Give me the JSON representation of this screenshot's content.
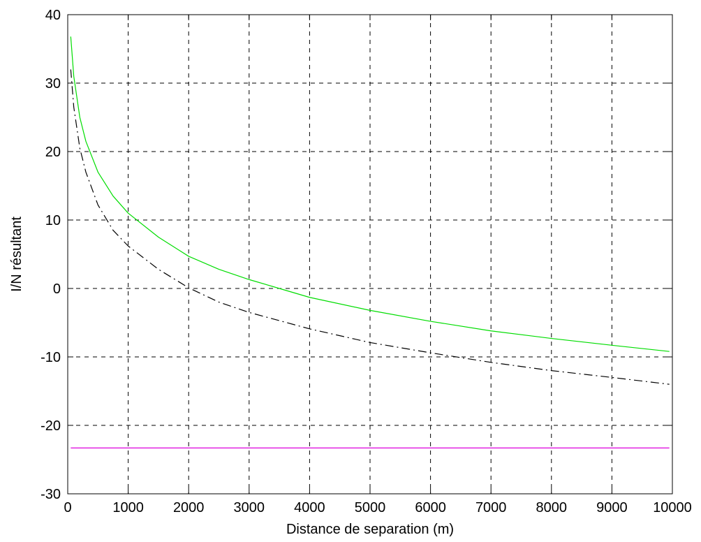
{
  "chart_data": {
    "type": "line",
    "title": "",
    "xlabel": "Distance de separation (m)",
    "ylabel": "I/N résultant",
    "xlim": [
      0,
      10000
    ],
    "ylim": [
      -30,
      40
    ],
    "grid": true,
    "grid_style": "dashed",
    "x_ticks": [
      0,
      1000,
      2000,
      3000,
      4000,
      5000,
      6000,
      7000,
      8000,
      9000,
      10000
    ],
    "y_ticks": [
      40,
      30,
      20,
      10,
      0,
      -10,
      -20,
      -30
    ],
    "x_tick_labels": [
      "0",
      "1000",
      "2000",
      "3000",
      "4000",
      "5000",
      "6000",
      "7000",
      "8000",
      "9000",
      "10000"
    ],
    "y_tick_labels": [
      "40",
      "30",
      "20",
      "10",
      "0",
      "-10",
      "-20",
      "-30"
    ],
    "series": [
      {
        "color": "#00dd00",
        "line_style": "solid",
        "x": [
          50,
          100,
          200,
          300,
          500,
          750,
          1000,
          1500,
          2000,
          2500,
          3000,
          3500,
          4000,
          5000,
          6000,
          7000,
          8000,
          9000,
          9950
        ],
        "y": [
          36.8,
          31.0,
          25.0,
          21.5,
          17.0,
          13.5,
          11.0,
          7.5,
          4.7,
          2.8,
          1.3,
          0.0,
          -1.3,
          -3.2,
          -4.8,
          -6.2,
          -7.3,
          -8.3,
          -9.2
        ]
      },
      {
        "color": "#000000",
        "line_style": "dashdot",
        "x": [
          50,
          100,
          200,
          300,
          500,
          750,
          1000,
          1500,
          2000,
          2500,
          3000,
          3500,
          4000,
          5000,
          6000,
          7000,
          8000,
          9000,
          9950
        ],
        "y": [
          32.0,
          26.5,
          20.5,
          17.0,
          12.2,
          8.5,
          6.2,
          2.8,
          0.1,
          -2.0,
          -3.5,
          -4.7,
          -5.9,
          -7.9,
          -9.4,
          -10.8,
          -12.0,
          -13.0,
          -14.0
        ]
      },
      {
        "color": "#dd00dd",
        "line_style": "solid",
        "x": [
          50,
          9950
        ],
        "y": [
          -23.3,
          -23.3
        ]
      }
    ]
  }
}
